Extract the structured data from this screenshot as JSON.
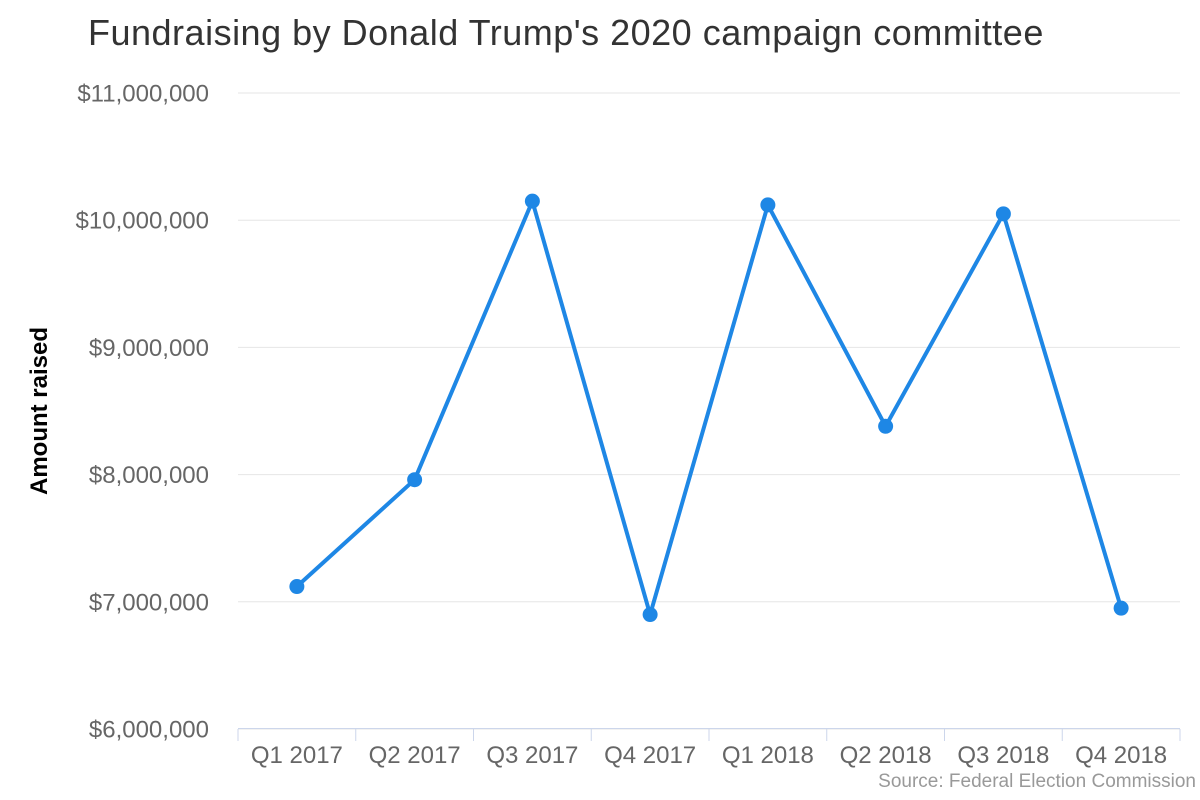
{
  "chart_data": {
    "type": "line",
    "title": "Fundraising by Donald Trump's 2020 campaign committee",
    "ylabel": "Amount raised",
    "xlabel": "",
    "categories": [
      "Q1 2017",
      "Q2 2017",
      "Q3 2017",
      "Q4 2017",
      "Q1 2018",
      "Q2 2018",
      "Q3 2018",
      "Q4 2018"
    ],
    "values": [
      7120000,
      7960000,
      10150000,
      6900000,
      10120000,
      8380000,
      10050000,
      6950000
    ],
    "ylim": [
      6000000,
      11000000
    ],
    "ytick_step": 1000000,
    "ytick_labels": [
      "$6,000,000",
      "$7,000,000",
      "$8,000,000",
      "$9,000,000",
      "$10,000,000",
      "$11,000,000"
    ],
    "grid": true,
    "legend": false,
    "marker": "circle"
  },
  "source": "Source: Federal Election Commission",
  "colors": {
    "line": "#1e87e5",
    "marker": "#1e87e5",
    "grid": "#e6e6e6",
    "axis_line": "#ccd6eb",
    "tick_label": "#666666",
    "title_text": "#333333",
    "axis_title_text": "#000000",
    "source_text": "#999999",
    "background": "#ffffff"
  }
}
